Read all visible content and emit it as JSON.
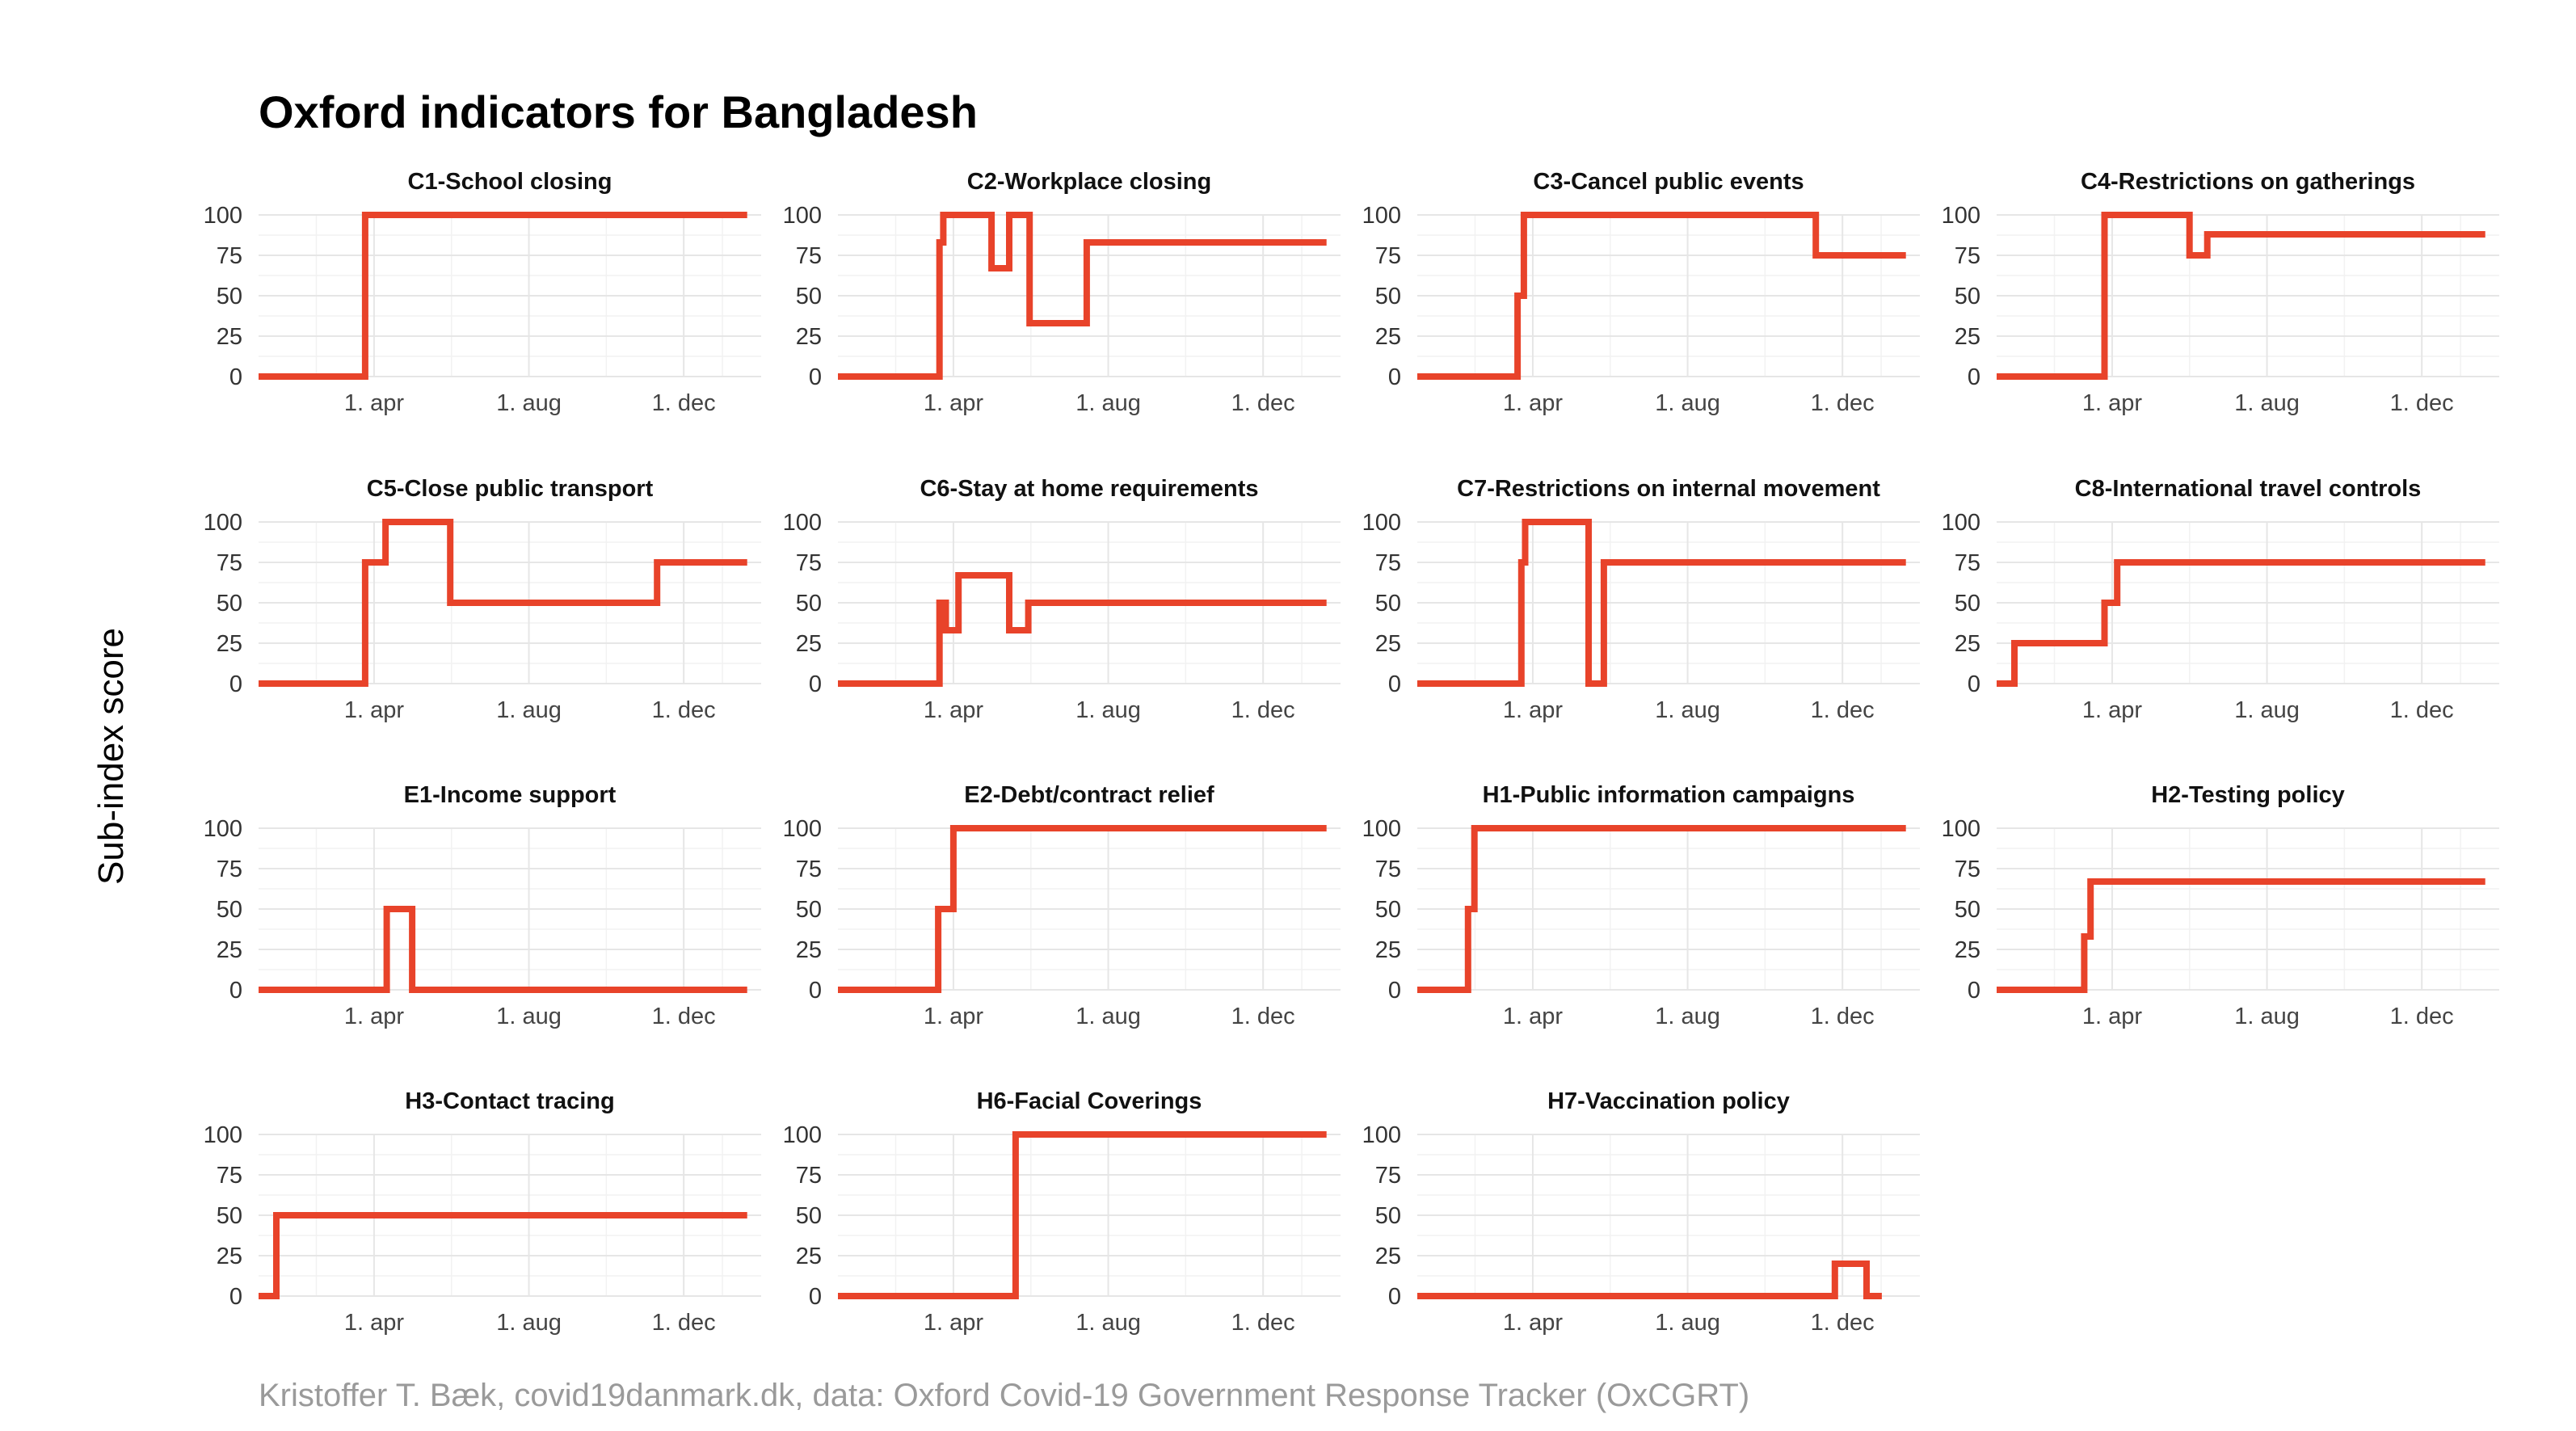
{
  "title": "Oxford indicators for Bangladesh",
  "ylabel": "Sub-index score",
  "caption": "Kristoffer T. Bæk, covid19danmark.dk, data: Oxford Covid-19 Government Response Tracker (OxCGRT)",
  "colors": {
    "line": "#e8432a"
  },
  "chart_data": {
    "type": "line",
    "layout": "facet-grid-4-columns",
    "x_axis": {
      "unit": "date",
      "min": "2020-01-01",
      "max": "2021-01-31",
      "ticks": [
        {
          "label": "1. apr",
          "date": "2020-04-01"
        },
        {
          "label": "1. aug",
          "date": "2020-08-01"
        },
        {
          "label": "1. dec",
          "date": "2020-12-01"
        }
      ]
    },
    "y_axis": {
      "min": 0,
      "max": 100,
      "ticks": [
        0,
        25,
        50,
        75,
        100
      ]
    },
    "grid": true,
    "panels": [
      {
        "name": "C1-School closing",
        "points": [
          [
            "2020-01-01",
            0
          ],
          [
            "2020-03-25",
            0
          ],
          [
            "2020-03-25",
            100
          ],
          [
            "2021-01-20",
            100
          ]
        ]
      },
      {
        "name": "C2-Workplace closing",
        "points": [
          [
            "2020-01-01",
            0
          ],
          [
            "2020-03-21",
            0
          ],
          [
            "2020-03-21",
            83
          ],
          [
            "2020-03-24",
            83
          ],
          [
            "2020-03-24",
            100
          ],
          [
            "2020-04-05",
            100
          ],
          [
            "2020-04-05",
            100
          ],
          [
            "2020-05-01",
            100
          ],
          [
            "2020-05-01",
            67
          ],
          [
            "2020-05-15",
            67
          ],
          [
            "2020-05-15",
            100
          ],
          [
            "2020-05-31",
            100
          ],
          [
            "2020-05-31",
            33
          ],
          [
            "2020-07-15",
            33
          ],
          [
            "2020-07-15",
            83
          ],
          [
            "2021-01-20",
            83
          ]
        ]
      },
      {
        "name": "C3-Cancel public events",
        "points": [
          [
            "2020-01-01",
            0
          ],
          [
            "2020-03-20",
            0
          ],
          [
            "2020-03-20",
            50
          ],
          [
            "2020-03-25",
            50
          ],
          [
            "2020-03-25",
            100
          ],
          [
            "2020-11-10",
            100
          ],
          [
            "2020-11-10",
            75
          ],
          [
            "2021-01-20",
            75
          ]
        ]
      },
      {
        "name": "C4-Restrictions on gatherings",
        "points": [
          [
            "2020-01-01",
            0
          ],
          [
            "2020-03-26",
            0
          ],
          [
            "2020-03-26",
            100
          ],
          [
            "2020-06-01",
            100
          ],
          [
            "2020-06-01",
            75
          ],
          [
            "2020-06-15",
            75
          ],
          [
            "2020-06-15",
            88
          ],
          [
            "2021-01-20",
            88
          ]
        ]
      },
      {
        "name": "C5-Close public transport",
        "points": [
          [
            "2020-01-01",
            0
          ],
          [
            "2020-03-25",
            0
          ],
          [
            "2020-03-25",
            75
          ],
          [
            "2020-04-10",
            75
          ],
          [
            "2020-04-10",
            100
          ],
          [
            "2020-05-31",
            100
          ],
          [
            "2020-05-31",
            50
          ],
          [
            "2020-11-10",
            50
          ],
          [
            "2020-11-10",
            75
          ],
          [
            "2021-01-20",
            75
          ]
        ]
      },
      {
        "name": "C6-Stay at home requirements",
        "points": [
          [
            "2020-01-01",
            0
          ],
          [
            "2020-03-21",
            0
          ],
          [
            "2020-03-21",
            50
          ],
          [
            "2020-03-26",
            50
          ],
          [
            "2020-03-26",
            33
          ],
          [
            "2020-04-05",
            33
          ],
          [
            "2020-04-05",
            67
          ],
          [
            "2020-05-15",
            67
          ],
          [
            "2020-05-15",
            33
          ],
          [
            "2020-05-30",
            33
          ],
          [
            "2020-05-30",
            50
          ],
          [
            "2021-01-20",
            50
          ]
        ]
      },
      {
        "name": "C7-Restrictions on internal movement",
        "points": [
          [
            "2020-01-01",
            0
          ],
          [
            "2020-03-23",
            0
          ],
          [
            "2020-03-23",
            75
          ],
          [
            "2020-03-26",
            75
          ],
          [
            "2020-03-26",
            100
          ],
          [
            "2020-05-15",
            100
          ],
          [
            "2020-05-15",
            0
          ],
          [
            "2020-05-27",
            0
          ],
          [
            "2020-05-27",
            75
          ],
          [
            "2021-01-20",
            75
          ]
        ]
      },
      {
        "name": "C8-International travel controls",
        "points": [
          [
            "2020-01-01",
            0
          ],
          [
            "2020-01-15",
            0
          ],
          [
            "2020-01-15",
            25
          ],
          [
            "2020-03-26",
            25
          ],
          [
            "2020-03-26",
            50
          ],
          [
            "2020-04-05",
            50
          ],
          [
            "2020-04-05",
            75
          ],
          [
            "2021-01-20",
            75
          ]
        ]
      },
      {
        "name": "E1-Income support",
        "points": [
          [
            "2020-01-01",
            0
          ],
          [
            "2020-04-11",
            0
          ],
          [
            "2020-04-11",
            50
          ],
          [
            "2020-05-01",
            50
          ],
          [
            "2020-05-01",
            0
          ],
          [
            "2021-01-20",
            0
          ]
        ]
      },
      {
        "name": "E2-Debt/contract relief",
        "points": [
          [
            "2020-01-01",
            0
          ],
          [
            "2020-03-20",
            0
          ],
          [
            "2020-03-20",
            50
          ],
          [
            "2020-04-01",
            50
          ],
          [
            "2020-04-01",
            100
          ],
          [
            "2021-01-20",
            100
          ]
        ]
      },
      {
        "name": "H1-Public information campaigns",
        "points": [
          [
            "2020-01-01",
            0
          ],
          [
            "2020-02-10",
            0
          ],
          [
            "2020-02-10",
            50
          ],
          [
            "2020-02-15",
            50
          ],
          [
            "2020-02-15",
            100
          ],
          [
            "2021-01-20",
            100
          ]
        ]
      },
      {
        "name": "H2-Testing policy",
        "points": [
          [
            "2020-01-01",
            0
          ],
          [
            "2020-03-10",
            0
          ],
          [
            "2020-03-10",
            33
          ],
          [
            "2020-03-15",
            33
          ],
          [
            "2020-03-15",
            67
          ],
          [
            "2021-01-20",
            67
          ]
        ]
      },
      {
        "name": "H3-Contact tracing",
        "points": [
          [
            "2020-01-01",
            0
          ],
          [
            "2020-01-15",
            0
          ],
          [
            "2020-01-15",
            50
          ],
          [
            "2021-01-20",
            50
          ]
        ]
      },
      {
        "name": "H6-Facial Coverings",
        "points": [
          [
            "2020-01-01",
            0
          ],
          [
            "2020-05-20",
            0
          ],
          [
            "2020-05-20",
            100
          ],
          [
            "2021-01-20",
            100
          ]
        ]
      },
      {
        "name": "H7-Vaccination policy",
        "points": [
          [
            "2020-01-01",
            0
          ],
          [
            "2020-11-25",
            0
          ],
          [
            "2020-11-25",
            20
          ],
          [
            "2020-12-20",
            20
          ],
          [
            "2020-12-20",
            0
          ],
          [
            "2021-01-01",
            0
          ]
        ]
      }
    ]
  }
}
